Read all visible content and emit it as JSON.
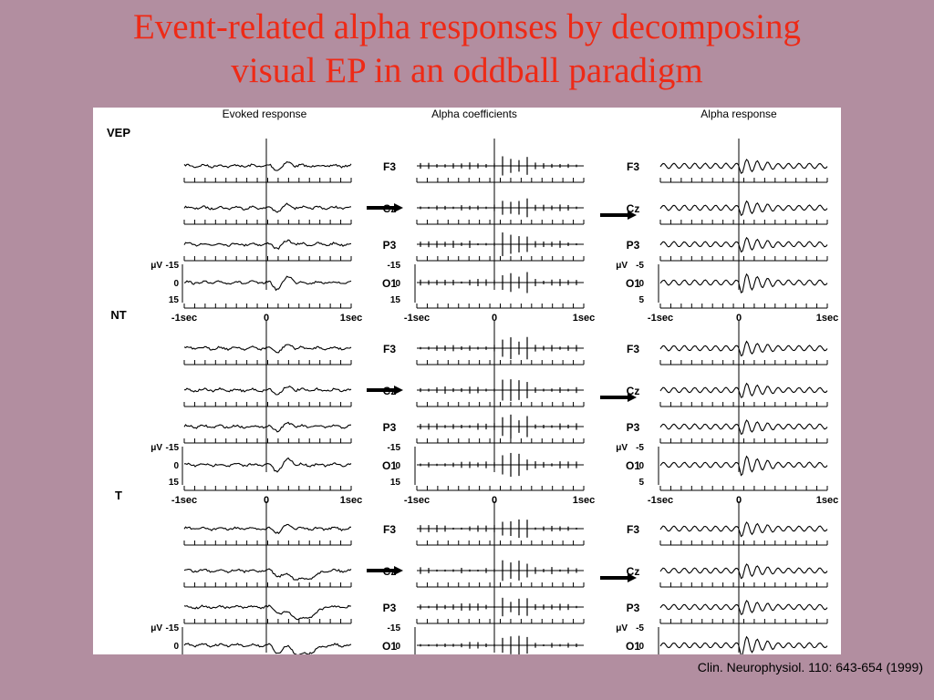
{
  "slide": {
    "title_line1": "Event-related alpha responses by decomposing",
    "title_line2": "visual EP in an oddball paradigm",
    "citation": "Clin. Neurophysiol. 110: 643-654 (1999)"
  },
  "figure": {
    "column_headers": [
      "Evoked response",
      "Alpha coefficients",
      "Alpha response"
    ],
    "channels": [
      "F3",
      "Cz",
      "P3",
      "O1"
    ],
    "unit": "μV",
    "time_ticks": [
      "-1sec",
      "0",
      "1sec"
    ],
    "conditions": [
      {
        "label": "VEP"
      },
      {
        "label": "NT"
      },
      {
        "label": "T"
      }
    ],
    "scale_labels": {
      "evoked": [
        "-15",
        "0",
        "15"
      ],
      "alpha_coefficients": [
        "-15",
        "0",
        "15"
      ],
      "alpha_response": [
        "-5",
        "0",
        "5"
      ]
    }
  }
}
